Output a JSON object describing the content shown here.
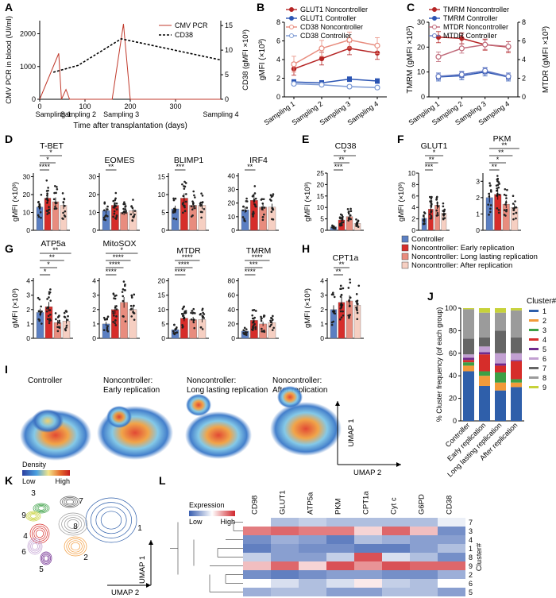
{
  "panel_labels": [
    "A",
    "B",
    "C",
    "D",
    "E",
    "F",
    "G",
    "H",
    "I",
    "J",
    "K",
    "L"
  ],
  "colors": {
    "controller": "#5b7fc2",
    "early": "#d62d2a",
    "long": "#e88c7e",
    "after": "#f6cfc2",
    "red_line": "#c0392b",
    "blue_line": "#2c55b3",
    "dark_red": "#b52424"
  },
  "chart_data": [
    {
      "id": "A",
      "type": "line",
      "xlabel": "Time after transplantation (days)",
      "ylabel": "CMV PCR in blood (UI/ml)",
      "y2label": "CD38 (gMFI ×10³)",
      "xticks": [
        0,
        100,
        200,
        300
      ],
      "xlim": [
        0,
        400
      ],
      "yticks": [
        0,
        1000,
        2000
      ],
      "ylim": [
        0,
        2400
      ],
      "y2ticks": [
        0,
        5,
        10,
        15
      ],
      "y2lim": [
        0,
        16
      ],
      "legend": [
        "CMV PCR",
        "CD38"
      ],
      "cmv_pcr": {
        "x": [
          0,
          42,
          48,
          58,
          66,
          75,
          85,
          160,
          185,
          200,
          400
        ],
        "y": [
          0,
          1400,
          0,
          300,
          0,
          0,
          0,
          0,
          2300,
          0,
          0
        ]
      },
      "cd38": {
        "x": [
          30,
          85,
          180,
          400
        ],
        "y": [
          5.5,
          6.9,
          12.3,
          8.0
        ]
      },
      "samplings": [
        "Sampling 1",
        "Sampling 2",
        "Sampling 3",
        "Sampling 4"
      ],
      "sampling_days": [
        30,
        85,
        180,
        400
      ]
    },
    {
      "id": "B",
      "type": "line",
      "ylabel": "gMFI (×10³)",
      "categories": [
        "Sampling 1",
        "Sampling 2",
        "Sampling 3",
        "Sampling 4"
      ],
      "yticks": [
        0,
        2,
        4,
        6,
        8
      ],
      "ylim": [
        0,
        8
      ],
      "series": [
        {
          "name": "GLUT1 Noncontroller",
          "values": [
            3.0,
            4.1,
            5.2,
            4.7
          ]
        },
        {
          "name": "GLUT1 Controller",
          "values": [
            1.6,
            1.5,
            1.9,
            1.7
          ]
        },
        {
          "name": "CD38 Noncontroller",
          "values": [
            3.5,
            5.2,
            6.1,
            5.5
          ]
        },
        {
          "name": "CD38 Controller",
          "values": [
            1.4,
            1.3,
            1.1,
            1.0
          ]
        }
      ]
    },
    {
      "id": "C",
      "type": "line",
      "ylabel": "TMRM (gMFI ×10³)",
      "y2label": "MTDR (gMFI ×10³)",
      "categories": [
        "Sampling 1",
        "Sampling 2",
        "Sampling 3",
        "Sampling 4"
      ],
      "yticks": [
        0,
        10,
        20,
        30
      ],
      "ylim": [
        0,
        30
      ],
      "y2ticks": [
        0,
        2,
        4,
        6,
        8
      ],
      "y2lim": [
        0,
        8
      ],
      "series": [
        {
          "name": "TMRM Noncontroller",
          "axis": "left",
          "values": [
            24,
            23.5,
            21,
            20
          ]
        },
        {
          "name": "TMRM Controller",
          "axis": "left",
          "values": [
            8,
            8.5,
            10,
            8
          ]
        },
        {
          "name": "MTDR Noncontroller",
          "axis": "right",
          "values": [
            4.3,
            5.2,
            5.6,
            5.4
          ]
        },
        {
          "name": "MTDR Controller",
          "axis": "right",
          "values": [
            2.2,
            2.4,
            2.8,
            2.2
          ]
        }
      ]
    },
    {
      "id": "D",
      "type": "bar",
      "group_label": "D",
      "ylabel": "gMFI (×10³)",
      "groups": [
        "Controller",
        "Noncontroller: Early replication",
        "Noncontroller: Long lasting replication",
        "Noncontroller: After replication"
      ],
      "subplots": [
        {
          "title": "T-BET",
          "yticks": [
            0,
            10,
            20,
            30
          ],
          "ylim": [
            0,
            32
          ],
          "values": [
            13,
            18,
            16,
            14
          ],
          "sig": [
            "****",
            "*",
            "*"
          ]
        },
        {
          "title": "EOMES",
          "yticks": [
            0,
            10,
            20,
            30
          ],
          "ylim": [
            0,
            32
          ],
          "values": [
            11,
            14,
            10,
            11
          ],
          "sig": [
            "**"
          ]
        },
        {
          "title": "BLIMP1",
          "yticks": [
            0,
            5,
            10,
            15
          ],
          "ylim": [
            0,
            16
          ],
          "values": [
            6,
            9,
            7,
            7
          ],
          "sig": [
            "***"
          ]
        },
        {
          "title": "IRF4",
          "yticks": [
            0,
            10,
            20,
            30,
            40
          ],
          "ylim": [
            0,
            42
          ],
          "values": [
            15,
            22,
            17,
            17
          ],
          "sig": [
            "**"
          ]
        }
      ]
    },
    {
      "id": "E",
      "type": "bar",
      "ylabel": "gMFI (×10³)",
      "subplots": [
        {
          "title": "CD38",
          "yticks": [
            0,
            5,
            10,
            15,
            20,
            25
          ],
          "ylim": [
            0,
            25
          ],
          "values": [
            1.5,
            4.5,
            6.0,
            3.0
          ],
          "sig": [
            "***",
            "**",
            "*"
          ]
        }
      ]
    },
    {
      "id": "F",
      "type": "bar",
      "ylabel": "gMFI (×10³)",
      "subplots": [
        {
          "title": "GLUT1",
          "yticks": [
            0,
            2,
            4,
            6,
            8,
            10
          ],
          "ylim": [
            0,
            10
          ],
          "values": [
            2.1,
            3.7,
            4.4,
            3.0
          ],
          "sig": [
            "***",
            "**",
            "*"
          ]
        },
        {
          "title": "PKM",
          "yticks": [
            0,
            1,
            2,
            3
          ],
          "ylim": [
            0,
            3.5
          ],
          "values": [
            2.0,
            2.2,
            1.6,
            1.4
          ],
          "sig": [
            "**",
            "*",
            "**",
            "**"
          ]
        }
      ]
    },
    {
      "id": "G",
      "type": "bar",
      "ylabel": "gMFI (×10³)",
      "subplots": [
        {
          "title": "ATP5a",
          "yticks": [
            0,
            1,
            2,
            3,
            4
          ],
          "ylim": [
            0,
            4.2
          ],
          "values": [
            1.8,
            2.2,
            1.1,
            1.2
          ],
          "sig": [
            "*",
            "*",
            "**",
            "**"
          ]
        },
        {
          "title": "MitoSOX",
          "yticks": [
            0,
            1,
            2,
            3,
            4
          ],
          "ylim": [
            0,
            4.2
          ],
          "values": [
            1.0,
            2.0,
            2.5,
            2.0
          ],
          "sig": [
            "****",
            "****",
            "****",
            "*"
          ]
        },
        {
          "title": "MTDR",
          "yticks": [
            0,
            5,
            10,
            15,
            20
          ],
          "ylim": [
            0,
            21
          ],
          "values": [
            3,
            7,
            6.5,
            6.5
          ],
          "sig": [
            "****",
            "****",
            "****"
          ]
        },
        {
          "title": "TMRM",
          "yticks": [
            0,
            20,
            40,
            60,
            80
          ],
          "ylim": [
            0,
            84
          ],
          "values": [
            10,
            25,
            20,
            22
          ],
          "sig": [
            "****",
            "***",
            "****"
          ]
        }
      ]
    },
    {
      "id": "H",
      "type": "bar",
      "ylabel": "gMFI (×10³)",
      "subplots": [
        {
          "title": "CPT1a",
          "yticks": [
            0,
            1,
            2,
            3,
            4
          ],
          "ylim": [
            0,
            4.2
          ],
          "values": [
            2.0,
            2.5,
            2.6,
            2.3
          ],
          "sig": [
            "**",
            "**"
          ]
        }
      ]
    },
    {
      "id": "J",
      "type": "bar",
      "stacked": true,
      "ylabel": "% Cluster frequency (of each group)",
      "legend_title": "Cluster#",
      "yticks": [
        0,
        20,
        40,
        60,
        80,
        100
      ],
      "ylim": [
        0,
        100
      ],
      "categories": [
        "Controller",
        "Early replication",
        "Long lasting replication",
        "After replication"
      ],
      "clusters": [
        "1",
        "2",
        "3",
        "4",
        "5",
        "6",
        "7",
        "8",
        "9"
      ],
      "cluster_colors": [
        "#2f5faa",
        "#f29a3a",
        "#3ca046",
        "#d62d2a",
        "#6f2a8e",
        "#c2a0d2",
        "#656565",
        "#9b9b9b",
        "#c7d23a"
      ],
      "values": [
        [
          44,
          5,
          3,
          2,
          2,
          3,
          14,
          26,
          1
        ],
        [
          31,
          9,
          4,
          15,
          2,
          5,
          8,
          22,
          4
        ],
        [
          27,
          7,
          9,
          6,
          2,
          9,
          20,
          16,
          4
        ],
        [
          30,
          4,
          3,
          16,
          1,
          6,
          14,
          24,
          2
        ]
      ]
    },
    {
      "id": "L",
      "type": "heatmap",
      "columns": [
        "CD98",
        "GLUT1",
        "ATP5a",
        "PKM",
        "CPT1a",
        "Cyt c",
        "G6PD",
        "CD38"
      ],
      "rows": [
        "7",
        "3",
        "4",
        "1",
        "8",
        "9",
        "2",
        "6",
        "5"
      ],
      "row_axis_label": "Cluster#",
      "legend_title": "Expression",
      "legend_low": "Low",
      "legend_high": "High",
      "values": [
        [
          0.5,
          0.3,
          0.35,
          0.3,
          0.3,
          0.3,
          0.3,
          0.45
        ],
        [
          0.8,
          0.85,
          0.8,
          0.8,
          0.6,
          0.85,
          0.65,
          0.15
        ],
        [
          0.15,
          0.25,
          0.2,
          0.1,
          0.3,
          0.25,
          0.2,
          0.2
        ],
        [
          0.1,
          0.2,
          0.15,
          0.15,
          0.1,
          0.1,
          0.2,
          0.3
        ],
        [
          0.35,
          0.2,
          0.2,
          0.35,
          0.9,
          0.4,
          0.3,
          0.15
        ],
        [
          0.65,
          0.85,
          0.6,
          0.9,
          0.75,
          0.9,
          0.85,
          0.85
        ],
        [
          0.15,
          0.1,
          0.15,
          0.2,
          0.2,
          0.15,
          0.15,
          0.25
        ],
        [
          0.5,
          0.4,
          0.3,
          0.4,
          0.55,
          0.35,
          0.3,
          0.5
        ],
        [
          0.25,
          0.3,
          0.3,
          0.2,
          0.2,
          0.3,
          0.3,
          0.2
        ]
      ]
    }
  ],
  "group_legend": [
    "Controller",
    "Noncontroller: Early replication",
    "Noncontroller: Long lasting replication",
    "Noncontroller: After replication"
  ],
  "density_panel": {
    "titles": [
      "Controller",
      "Noncontroller:\nEarly replication",
      "Noncontroller:\nLong lasting replication",
      "Noncontroller:\nAfter replication"
    ],
    "density_label": "Density",
    "low": "Low",
    "high": "High",
    "umap1": "UMAP 1",
    "umap2": "UMAP 2"
  },
  "cluster_map": {
    "labels": [
      "1",
      "2",
      "3",
      "4",
      "5",
      "6",
      "7",
      "8",
      "9"
    ],
    "umap1": "UMAP 1",
    "umap2": "UMAP 2"
  }
}
